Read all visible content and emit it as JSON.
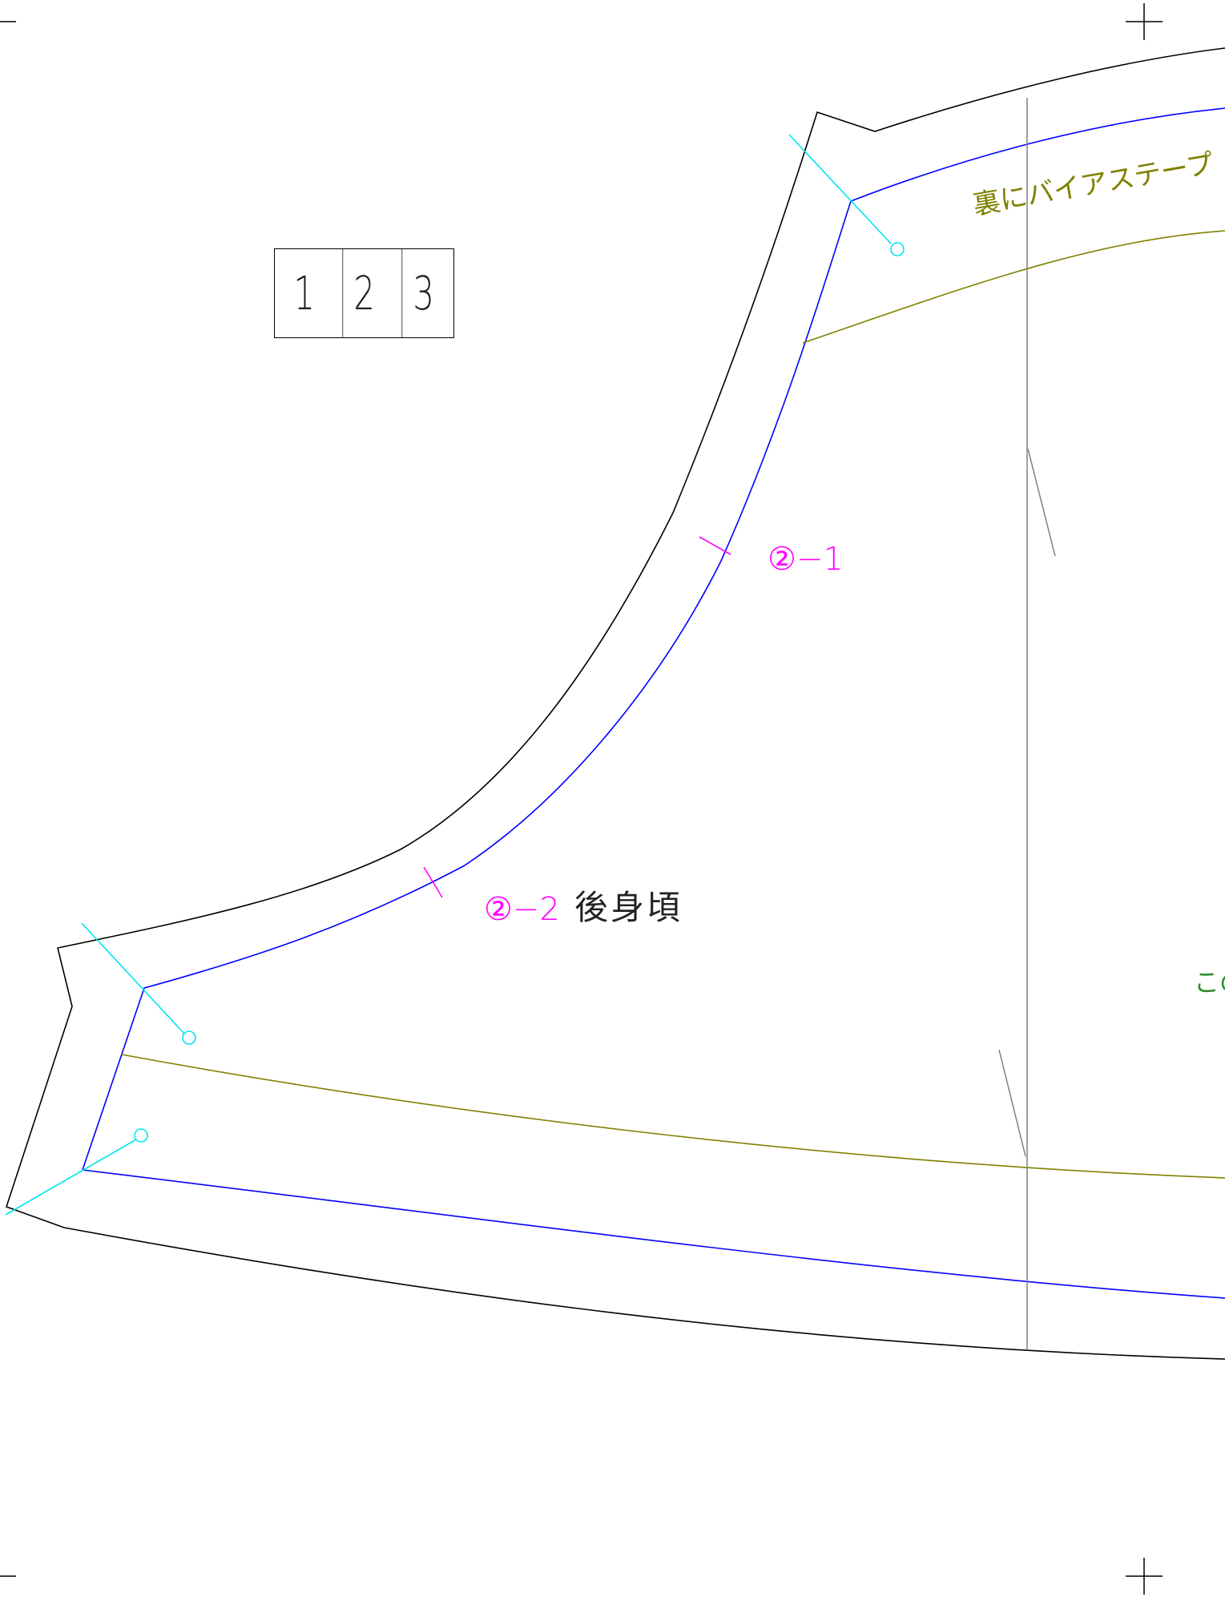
{
  "page_numbers": [
    "1",
    "2",
    "3"
  ],
  "piece_name": "後身頃",
  "match_marks": {
    "mark_1": "②−1",
    "mark_2": "②−2"
  },
  "bias_tape_note": "裏にバイアステープ",
  "partial_note": "この",
  "colors": {
    "cut_line": "#000000",
    "seam_line": "#0000ff",
    "facing_line": "#808000",
    "grain_line": "#808080",
    "corner_marker": "#00e5ee",
    "match_mark": "#ff00ff",
    "note_green": "#2e8b2e"
  }
}
